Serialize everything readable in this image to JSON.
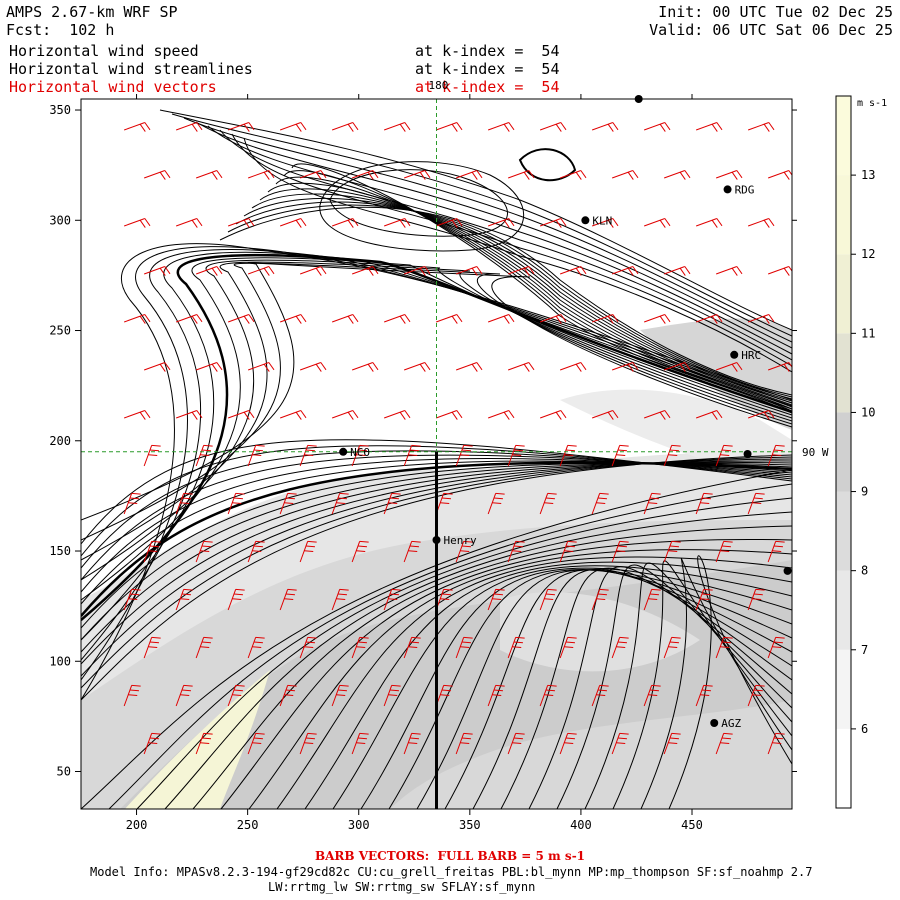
{
  "header": {
    "model_title": "AMPS 2.67-km WRF SP",
    "forecast": "Fcst:  102 h",
    "init": "Init: 00 UTC Tue 02 Dec 25",
    "valid": "Valid: 06 UTC Sat 06 Dec 25",
    "fields": [
      {
        "name": "Horizontal wind speed",
        "level": "at k-index =  54",
        "color": "#000000"
      },
      {
        "name": "Horizontal wind streamlines",
        "level": "at k-index =  54",
        "color": "#000000"
      },
      {
        "name": "Horizontal wind vectors",
        "level": "at k-index =  54",
        "color": "#e00000"
      }
    ]
  },
  "map": {
    "x_ticks": [
      "200",
      "250",
      "300",
      "350",
      "400",
      "450"
    ],
    "y_ticks": [
      "50",
      "100",
      "150",
      "200",
      "250",
      "300",
      "350"
    ],
    "x_range": [
      175,
      495
    ],
    "y_range": [
      33,
      355
    ],
    "meridian_label": "180",
    "parallel_label": "90 W",
    "stations": [
      {
        "name": "NCO",
        "x": 293,
        "y": 195
      },
      {
        "name": "Henry",
        "x": 335,
        "y": 155
      },
      {
        "name": "KLN",
        "x": 402,
        "y": 300
      },
      {
        "name": "RDG",
        "x": 466,
        "y": 314
      },
      {
        "name": "HRC",
        "x": 469,
        "y": 239
      },
      {
        "name": "AGZ",
        "x": 460,
        "y": 72
      },
      {
        "name": "",
        "x": 426,
        "y": 355
      },
      {
        "name": "",
        "x": 493,
        "y": 141
      },
      {
        "name": "",
        "x": 475,
        "y": 194
      }
    ],
    "section_line": {
      "x": 335,
      "y_from": 33,
      "y_to": 195
    }
  },
  "colorbar": {
    "unit": "m s-1",
    "levels": [
      "6",
      "7",
      "8",
      "9",
      "10",
      "11",
      "12",
      "13"
    ],
    "colors": [
      "#ffffff",
      "#f4f4f4",
      "#e8e8e8",
      "#dcdcdc",
      "#d0d0d0",
      "#e2e2d2",
      "#f0f0d4",
      "#f8f8d8",
      "#fbfbdc"
    ]
  },
  "footer": {
    "barb_note": "BARB VECTORS:  FULL BARB = 5 m s-1",
    "model_info": "Model Info: MPASv8.2.3-194-gf29cd82c CU:cu_grell_freitas PBL:bl_mynn MP:mp_thompson SF:sf_noahmp 2.7",
    "model_info2": "LW:rrtmg_lw SW:rrtmg_sw SFLAY:sf_mynn"
  }
}
